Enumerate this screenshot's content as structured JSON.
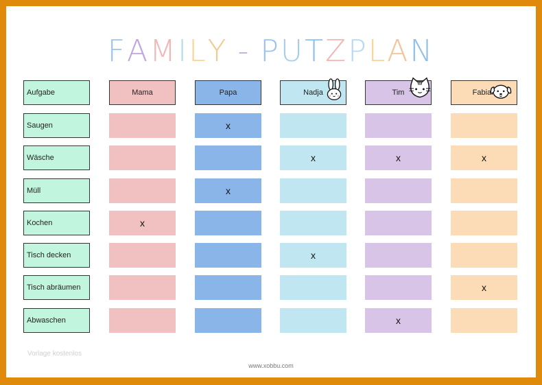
{
  "title": {
    "letters": [
      "F",
      "A",
      "M",
      "I",
      "L",
      "Y",
      " ",
      "-",
      " ",
      "P",
      "U",
      "T",
      "Z",
      "P",
      "L",
      "A",
      "N"
    ],
    "colors": [
      "#9ec3ea",
      "#c0a6e0",
      "#f3b6b6",
      "#b8dcea",
      "#f9d49a",
      "#f2c98e",
      "#ffffff",
      "#c0a6e0",
      "#ffffff",
      "#9ec3ea",
      "#a6cde8",
      "#8fbfe9",
      "#f3b6b6",
      "#b8d9f0",
      "#f9d49a",
      "#f3c49a",
      "#8fbfe9"
    ]
  },
  "header": {
    "task_label": "Aufgabe",
    "people": [
      "Mama",
      "Papa",
      "Nadja",
      "Tim",
      "Fabian"
    ]
  },
  "person_colors": {
    "Mama": "#f1c0c0",
    "Papa": "#8ab5e8",
    "Nadja": "#bfe6f1",
    "Tim": "#d7c4e6",
    "Fabian": "#fbdcb6"
  },
  "icons": {
    "Nadja": "bunny-icon",
    "Tim": "cat-icon",
    "Fabian": "dog-icon"
  },
  "tasks": [
    "Saugen",
    "Wäsche",
    "Müll",
    "Kochen",
    "Tisch decken",
    "Tisch abräumen",
    "Abwaschen"
  ],
  "assignments": [
    [
      "",
      "x",
      "",
      "",
      ""
    ],
    [
      "",
      "",
      "x",
      "x",
      "x"
    ],
    [
      "",
      "x",
      "",
      "",
      ""
    ],
    [
      "x",
      "",
      "",
      "",
      ""
    ],
    [
      "",
      "",
      "x",
      "",
      ""
    ],
    [
      "",
      "",
      "",
      "",
      "x"
    ],
    [
      "",
      "",
      "",
      "x",
      ""
    ]
  ],
  "watermark": "Vorlage kostenlos",
  "footer": "www.xobbu.com"
}
